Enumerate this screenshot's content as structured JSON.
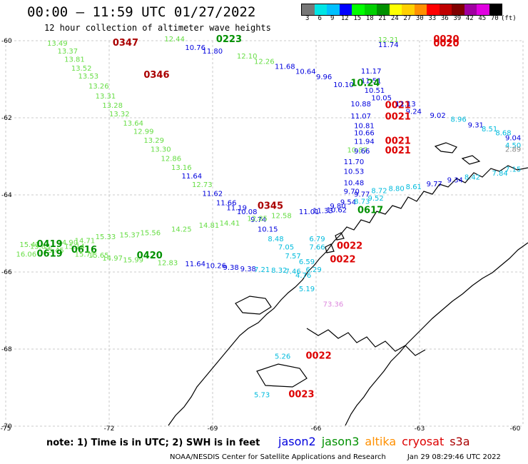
{
  "header": {
    "title": "00:00 – 11:59 UTC 01/27/2022",
    "subtitle": "12 hour collection of altimeter wave heights"
  },
  "colorbar": {
    "colors": [
      "#777777",
      "#00e5e5",
      "#00c0ff",
      "#0000ff",
      "#00ff00",
      "#00d000",
      "#009000",
      "#ffff00",
      "#ffd000",
      "#ff9000",
      "#ff0000",
      "#c00000",
      "#800000",
      "#a000a0",
      "#e000e0",
      "#000000"
    ],
    "labels": [
      "3",
      "6",
      "9",
      "12",
      "15",
      "18",
      "21",
      "24",
      "27",
      "30",
      "33",
      "36",
      "39",
      "42",
      "45",
      "70"
    ],
    "unit": "(ft)"
  },
  "axes": {
    "lat_labels": [
      "-60",
      "-62",
      "-64",
      "-66",
      "-68",
      "-70"
    ],
    "lon_labels": [
      "-75",
      "-72",
      "-69",
      "-66",
      "-63",
      "-60"
    ]
  },
  "map_data": {
    "lat_range": [
      -70,
      -60
    ],
    "lon_range": [
      -75,
      -60
    ],
    "satellite_colors": {
      "jason2": "#0000dd",
      "jason3": "#009000",
      "altika": "#ff9000",
      "cryosat": "#dd0000",
      "s3a": "#aa0000",
      "green_light": "#66dd44",
      "cyan": "#00bbdd",
      "pink": "#dd88dd",
      "gray": "#888888"
    },
    "labels": [
      {
        "t": "0347",
        "lon": -71.9,
        "lat": -60.13,
        "c": "s3a",
        "big": true
      },
      {
        "t": "0223",
        "lon": -68.9,
        "lat": -60.04,
        "c": "jason3",
        "big": true
      },
      {
        "t": "0346",
        "lon": -71.0,
        "lat": -60.96,
        "c": "s3a",
        "big": true
      },
      {
        "t": "0020",
        "lon": -62.6,
        "lat": -60.04,
        "c": "cryosat",
        "big": true
      },
      {
        "t": "0020",
        "lon": -62.6,
        "lat": -60.15,
        "c": "cryosat",
        "big": true
      },
      {
        "t": "12.21",
        "lon": -64.2,
        "lat": -60.04,
        "c": "green_light"
      },
      {
        "t": "11.74",
        "lon": -64.2,
        "lat": -60.17,
        "c": "jason2"
      },
      {
        "t": "13.49",
        "lon": -73.8,
        "lat": -60.13,
        "c": "green_light"
      },
      {
        "t": "12.44",
        "lon": -70.4,
        "lat": -60.02,
        "c": "green_light"
      },
      {
        "t": "13.37",
        "lon": -73.5,
        "lat": -60.33,
        "c": "green_light"
      },
      {
        "t": "10.76",
        "lon": -69.8,
        "lat": -60.24,
        "c": "jason2"
      },
      {
        "t": "11.80",
        "lon": -69.3,
        "lat": -60.33,
        "c": "jason2"
      },
      {
        "t": "13.81",
        "lon": -73.3,
        "lat": -60.55,
        "c": "green_light"
      },
      {
        "t": "12.10",
        "lon": -68.3,
        "lat": -60.46,
        "c": "green_light"
      },
      {
        "t": "12.26",
        "lon": -67.8,
        "lat": -60.6,
        "c": "green_light"
      },
      {
        "t": "11.68",
        "lon": -67.2,
        "lat": -60.73,
        "c": "jason2"
      },
      {
        "t": "10.64",
        "lon": -66.6,
        "lat": -60.86,
        "c": "jason2"
      },
      {
        "t": "9.96",
        "lon": -66.0,
        "lat": -61.0,
        "c": "jason2"
      },
      {
        "t": "10.10",
        "lon": -65.5,
        "lat": -61.2,
        "c": "jason2"
      },
      {
        "t": "13.52",
        "lon": -73.1,
        "lat": -60.78,
        "c": "green_light"
      },
      {
        "t": "13.53",
        "lon": -72.9,
        "lat": -60.98,
        "c": "green_light"
      },
      {
        "t": "13.26",
        "lon": -72.6,
        "lat": -61.24,
        "c": "green_light"
      },
      {
        "t": "13.31",
        "lon": -72.4,
        "lat": -61.5,
        "c": "green_light"
      },
      {
        "t": "13.28",
        "lon": -72.2,
        "lat": -61.74,
        "c": "green_light"
      },
      {
        "t": "13.32",
        "lon": -72.0,
        "lat": -61.96,
        "c": "green_light"
      },
      {
        "t": "13.64",
        "lon": -71.6,
        "lat": -62.2,
        "c": "green_light"
      },
      {
        "t": "12.99",
        "lon": -71.3,
        "lat": -62.42,
        "c": "green_light"
      },
      {
        "t": "13.29",
        "lon": -71.0,
        "lat": -62.65,
        "c": "green_light"
      },
      {
        "t": "13.30",
        "lon": -70.8,
        "lat": -62.88,
        "c": "green_light"
      },
      {
        "t": "12.86",
        "lon": -70.5,
        "lat": -63.12,
        "c": "green_light"
      },
      {
        "t": "13.16",
        "lon": -70.2,
        "lat": -63.35,
        "c": "green_light"
      },
      {
        "t": "11.64",
        "lon": -69.9,
        "lat": -63.57,
        "c": "jason2"
      },
      {
        "t": "12.73",
        "lon": -69.6,
        "lat": -63.8,
        "c": "green_light"
      },
      {
        "t": "11.62",
        "lon": -69.3,
        "lat": -64.03,
        "c": "jason2"
      },
      {
        "t": "11.66",
        "lon": -68.9,
        "lat": -64.27,
        "c": "jason2"
      },
      {
        "t": "0345",
        "lon": -67.7,
        "lat": -64.36,
        "c": "s3a",
        "big": true
      },
      {
        "t": "11.19",
        "lon": -68.6,
        "lat": -64.4,
        "c": "jason2"
      },
      {
        "t": "10.08",
        "lon": -68.3,
        "lat": -64.5,
        "c": "jason2"
      },
      {
        "t": "9.74",
        "lon": -67.9,
        "lat": -64.7,
        "c": "jason2"
      },
      {
        "t": "10.15",
        "lon": -67.7,
        "lat": -64.95,
        "c": "jason2"
      },
      {
        "t": "11.17",
        "lon": -64.7,
        "lat": -60.85,
        "c": "jason2"
      },
      {
        "t": "11.51",
        "lon": -64.7,
        "lat": -61.1,
        "c": "jason2"
      },
      {
        "t": "10.24",
        "lon": -65.0,
        "lat": -61.18,
        "c": "jason3",
        "big": true
      },
      {
        "t": "10.51",
        "lon": -64.6,
        "lat": -61.35,
        "c": "jason2"
      },
      {
        "t": "10.88",
        "lon": -65.0,
        "lat": -61.7,
        "c": "jason2"
      },
      {
        "t": "0021",
        "lon": -64.0,
        "lat": -61.75,
        "c": "cryosat",
        "big": true
      },
      {
        "t": "10.05",
        "lon": -64.4,
        "lat": -61.55,
        "c": "jason2"
      },
      {
        "t": "11.13",
        "lon": -63.7,
        "lat": -61.7,
        "c": "jason2"
      },
      {
        "t": "9.24",
        "lon": -63.4,
        "lat": -61.9,
        "c": "jason2"
      },
      {
        "t": "9.02",
        "lon": -62.7,
        "lat": -62.0,
        "c": "jason2"
      },
      {
        "t": "8.96",
        "lon": -62.1,
        "lat": -62.1,
        "c": "cyan"
      },
      {
        "t": "11.07",
        "lon": -65.0,
        "lat": -62.02,
        "c": "jason2"
      },
      {
        "t": "0021",
        "lon": -64.0,
        "lat": -62.05,
        "c": "cryosat",
        "big": true
      },
      {
        "t": "9.31",
        "lon": -61.6,
        "lat": -62.25,
        "c": "jason2"
      },
      {
        "t": "8.51",
        "lon": -61.2,
        "lat": -62.35,
        "c": "cyan"
      },
      {
        "t": "8.68",
        "lon": -60.8,
        "lat": -62.45,
        "c": "cyan"
      },
      {
        "t": "9.04",
        "lon": -60.4,
        "lat": -62.58,
        "c": "jason2"
      },
      {
        "t": "10.81",
        "lon": -64.9,
        "lat": -62.27,
        "c": "jason2"
      },
      {
        "t": "10.66",
        "lon": -64.9,
        "lat": -62.45,
        "c": "jason2"
      },
      {
        "t": "11.94",
        "lon": -64.9,
        "lat": -62.68,
        "c": "jason2"
      },
      {
        "t": "0021",
        "lon": -64.0,
        "lat": -62.68,
        "c": "cryosat",
        "big": true
      },
      {
        "t": "10.87",
        "lon": -65.1,
        "lat": -62.9,
        "c": "green_light"
      },
      {
        "t": "9.66",
        "lon": -64.9,
        "lat": -62.93,
        "c": "jason2"
      },
      {
        "t": "0021",
        "lon": -64.0,
        "lat": -62.93,
        "c": "cryosat",
        "big": true
      },
      {
        "t": "4.50",
        "lon": -60.1,
        "lat": -62.78,
        "c": "cyan"
      },
      {
        "t": "2.89",
        "lon": -59.7,
        "lat": -62.88,
        "c": "gray"
      },
      {
        "t": "11.70",
        "lon": -65.2,
        "lat": -63.2,
        "c": "jason2"
      },
      {
        "t": "10.53",
        "lon": -65.2,
        "lat": -63.45,
        "c": "jason2"
      },
      {
        "t": "7.84",
        "lon": -60.9,
        "lat": -63.5,
        "c": "cyan"
      },
      {
        "t": "7.15",
        "lon": -60.4,
        "lat": -63.4,
        "c": "cyan"
      },
      {
        "t": "8.42",
        "lon": -61.7,
        "lat": -63.6,
        "c": "cyan"
      },
      {
        "t": "9.34",
        "lon": -62.2,
        "lat": -63.68,
        "c": "jason2"
      },
      {
        "t": "9.77",
        "lon": -62.8,
        "lat": -63.78,
        "c": "jason2"
      },
      {
        "t": "8.61",
        "lon": -63.4,
        "lat": -63.85,
        "c": "cyan"
      },
      {
        "t": "8.80",
        "lon": -63.9,
        "lat": -63.9,
        "c": "cyan"
      },
      {
        "t": "8.72",
        "lon": -64.4,
        "lat": -63.95,
        "c": "cyan"
      },
      {
        "t": "10.48",
        "lon": -65.2,
        "lat": -63.75,
        "c": "jason2"
      },
      {
        "t": "9.70",
        "lon": -65.2,
        "lat": -63.97,
        "c": "jason2"
      },
      {
        "t": "9.77",
        "lon": -64.9,
        "lat": -64.05,
        "c": "jason2"
      },
      {
        "t": "9.54",
        "lon": -65.3,
        "lat": -64.25,
        "c": "jason2"
      },
      {
        "t": "9.52",
        "lon": -64.5,
        "lat": -64.15,
        "c": "cyan"
      },
      {
        "t": "8.73",
        "lon": -64.9,
        "lat": -64.23,
        "c": "cyan"
      },
      {
        "t": "9.80",
        "lon": -65.6,
        "lat": -64.35,
        "c": "jason2"
      },
      {
        "t": "0617",
        "lon": -64.8,
        "lat": -64.47,
        "c": "jason3",
        "big": true
      },
      {
        "t": "11.01",
        "lon": -66.5,
        "lat": -64.5,
        "c": "jason2"
      },
      {
        "t": "11.33",
        "lon": -66.1,
        "lat": -64.47,
        "c": "jason2"
      },
      {
        "t": "10.62",
        "lon": -65.7,
        "lat": -64.45,
        "c": "jason2"
      },
      {
        "t": "12.58",
        "lon": -67.3,
        "lat": -64.6,
        "c": "green_light"
      },
      {
        "t": "12.85",
        "lon": -68.0,
        "lat": -64.68,
        "c": "green_light"
      },
      {
        "t": "14.41",
        "lon": -68.8,
        "lat": -64.8,
        "c": "green_light"
      },
      {
        "t": "14.81",
        "lon": -69.4,
        "lat": -64.85,
        "c": "green_light"
      },
      {
        "t": "14.25",
        "lon": -70.2,
        "lat": -64.95,
        "c": "green_light"
      },
      {
        "t": "15.56",
        "lon": -71.1,
        "lat": -65.05,
        "c": "green_light"
      },
      {
        "t": "15.37",
        "lon": -71.7,
        "lat": -65.1,
        "c": "green_light"
      },
      {
        "t": "15.33",
        "lon": -72.4,
        "lat": -65.15,
        "c": "green_light"
      },
      {
        "t": "14.71",
        "lon": -73.0,
        "lat": -65.25,
        "c": "green_light"
      },
      {
        "t": "14.90",
        "lon": -73.5,
        "lat": -65.3,
        "c": "green_light"
      },
      {
        "t": "15.42",
        "lon": -74.6,
        "lat": -65.35,
        "c": "green_light"
      },
      {
        "t": "15.85",
        "lon": -74.3,
        "lat": -65.4,
        "c": "green_light"
      },
      {
        "t": "0419",
        "lon": -74.1,
        "lat": -65.35,
        "c": "jason3",
        "big": true
      },
      {
        "t": "15.45",
        "lon": -73.9,
        "lat": -65.5,
        "c": "green_light"
      },
      {
        "t": "15.14",
        "lon": -73.3,
        "lat": -65.4,
        "c": "green_light"
      },
      {
        "t": "0616",
        "lon": -73.1,
        "lat": -65.5,
        "c": "jason3",
        "big": true
      },
      {
        "t": "16.06",
        "lon": -74.7,
        "lat": -65.6,
        "c": "green_light"
      },
      {
        "t": "0619",
        "lon": -74.1,
        "lat": -65.6,
        "c": "jason3",
        "big": true
      },
      {
        "t": "15.71",
        "lon": -73.0,
        "lat": -65.6,
        "c": "green_light"
      },
      {
        "t": "15.65",
        "lon": -72.6,
        "lat": -65.63,
        "c": "green_light"
      },
      {
        "t": "14.97",
        "lon": -72.2,
        "lat": -65.7,
        "c": "green_light"
      },
      {
        "t": "15.99",
        "lon": -71.6,
        "lat": -65.75,
        "c": "green_light"
      },
      {
        "t": "0420",
        "lon": -71.2,
        "lat": -65.65,
        "c": "jason3",
        "big": true
      },
      {
        "t": "12.83",
        "lon": -70.6,
        "lat": -65.82,
        "c": "green_light"
      },
      {
        "t": "11.64",
        "lon": -69.8,
        "lat": -65.85,
        "c": "jason2"
      },
      {
        "t": "10.26",
        "lon": -69.2,
        "lat": -65.9,
        "c": "jason2"
      },
      {
        "t": "9.38",
        "lon": -68.7,
        "lat": -65.94,
        "c": "jason2"
      },
      {
        "t": "9.38",
        "lon": -68.2,
        "lat": -65.98,
        "c": "jason2"
      },
      {
        "t": "7.21",
        "lon": -67.8,
        "lat": -66.0,
        "c": "cyan"
      },
      {
        "t": "8.32",
        "lon": -67.3,
        "lat": -66.02,
        "c": "cyan"
      },
      {
        "t": "7.46",
        "lon": -66.9,
        "lat": -66.05,
        "c": "cyan"
      },
      {
        "t": "8.48",
        "lon": -67.4,
        "lat": -65.2,
        "c": "cyan"
      },
      {
        "t": "7.05",
        "lon": -67.1,
        "lat": -65.42,
        "c": "cyan"
      },
      {
        "t": "6.79",
        "lon": -66.2,
        "lat": -65.2,
        "c": "cyan"
      },
      {
        "t": "7.66",
        "lon": -66.2,
        "lat": -65.42,
        "c": "cyan"
      },
      {
        "t": "0022",
        "lon": -65.4,
        "lat": -65.4,
        "c": "cryosat",
        "big": true
      },
      {
        "t": "7.57",
        "lon": -66.9,
        "lat": -65.65,
        "c": "cyan"
      },
      {
        "t": "6.59",
        "lon": -66.5,
        "lat": -65.8,
        "c": "cyan"
      },
      {
        "t": "0022",
        "lon": -65.6,
        "lat": -65.75,
        "c": "cryosat",
        "big": true
      },
      {
        "t": "6.29",
        "lon": -66.3,
        "lat": -66.0,
        "c": "cyan"
      },
      {
        "t": "4.76",
        "lon": -66.6,
        "lat": -66.15,
        "c": "cyan"
      },
      {
        "t": "5.19",
        "lon": -66.5,
        "lat": -66.5,
        "c": "cyan"
      },
      {
        "t": "73.36",
        "lon": -65.8,
        "lat": -66.9,
        "c": "pink"
      },
      {
        "t": "5.26",
        "lon": -67.2,
        "lat": -68.25,
        "c": "cyan"
      },
      {
        "t": "0022",
        "lon": -66.3,
        "lat": -68.25,
        "c": "cryosat",
        "big": true
      },
      {
        "t": "5.73",
        "lon": -67.8,
        "lat": -69.25,
        "c": "cyan"
      },
      {
        "t": "0023",
        "lon": -66.8,
        "lat": -69.25,
        "c": "cryosat",
        "big": true
      }
    ]
  },
  "note": "note: 1) Time is in UTC; 2) SWH is in feet",
  "legend": [
    {
      "name": "jason2",
      "color": "#0000dd"
    },
    {
      "name": "jason3",
      "color": "#009000"
    },
    {
      "name": "altika",
      "color": "#ff9000"
    },
    {
      "name": "cryosat",
      "color": "#dd0000"
    },
    {
      "name": "s3a",
      "color": "#aa0000"
    }
  ],
  "footer": {
    "org": "NOAA/NESDIS Center for Satellite Applications and Research",
    "timestamp": "Jan 29 08:29:46 UTC 2022"
  }
}
